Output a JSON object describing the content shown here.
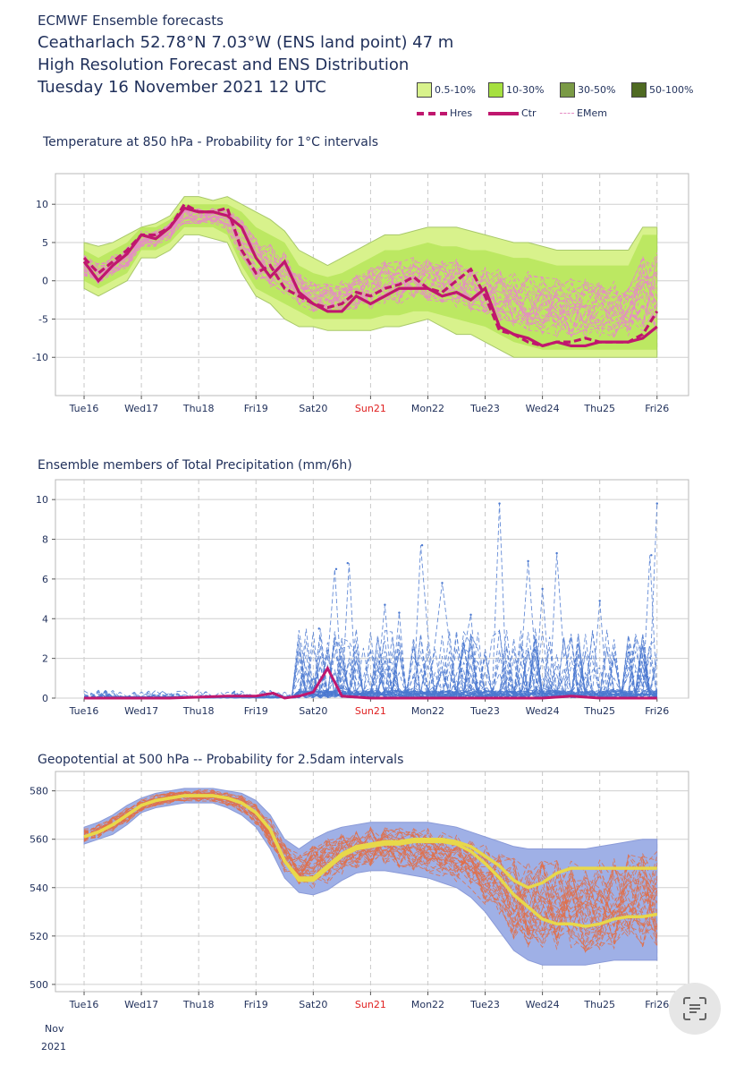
{
  "header": {
    "lines": [
      "ECMWF Ensemble forecasts",
      "Ceatharlach 52.78°N 7.03°W (ENS land point) 47 m",
      "High Resolution Forecast and ENS Distribution",
      "Tuesday 16 November 2021 12 UTC"
    ]
  },
  "legend": {
    "probability_bands": [
      {
        "label": "0.5-10%",
        "color": "#d8f28c"
      },
      {
        "label": "10-30%",
        "color": "#a6e040"
      },
      {
        "label": "30-50%",
        "color": "#7a9a45"
      },
      {
        "label": "50-100%",
        "color": "#4f6a22"
      }
    ],
    "lines": [
      {
        "label": "Hres",
        "color": "#c0176e",
        "style": "dashed-thick"
      },
      {
        "label": "Ctr",
        "color": "#c0176e",
        "style": "solid-thick"
      },
      {
        "label": "EMem",
        "color": "#e58cc4",
        "style": "dashed-thin"
      }
    ]
  },
  "date_axis": {
    "labels": [
      "Tue16",
      "Wed17",
      "Thu18",
      "Fri19",
      "Sat20",
      "Sun21",
      "Mon22",
      "Tue23",
      "Wed24",
      "Thu25",
      "Fri26"
    ],
    "highlight_label": "Sun21",
    "highlight_color": "#e02020",
    "first_label_extra": [
      "Nov",
      "2021"
    ]
  },
  "chart_data": [
    {
      "type": "line",
      "title": "Temperature at 850 hPa - Probability for 1°C intervals",
      "x": [
        0,
        0.5,
        1,
        1.5,
        2,
        2.5,
        3,
        3.5,
        4,
        4.5,
        5,
        5.5,
        6,
        6.5,
        7,
        7.5,
        8,
        8.5,
        9,
        9.5,
        10,
        10.5,
        11,
        11.5,
        12,
        12.5,
        13,
        13.5,
        14,
        14.5,
        15,
        15.5,
        16,
        16.5,
        17,
        17.5,
        18,
        18.5,
        19,
        19.5,
        20
      ],
      "x_unit": "half-day steps from Tue16 12UTC",
      "ylim": [
        -15,
        14
      ],
      "yticks": [
        -10,
        -5,
        0,
        5,
        10
      ],
      "grid": true,
      "series": [
        {
          "name": "Hres",
          "values": [
            3,
            1,
            2.5,
            4,
            6,
            6,
            7,
            10,
            9,
            9,
            9.5,
            4,
            1,
            2,
            -1,
            -2,
            -3,
            -3.5,
            -3,
            -1.5,
            -2,
            -1,
            -0.5,
            0.5,
            -1,
            -1.5,
            0,
            1.5,
            -2,
            -6.5,
            -7,
            -8,
            -8.5,
            -8,
            -8,
            -7.5,
            -8,
            -8,
            -8,
            -7,
            -4
          ]
        },
        {
          "name": "Ctr",
          "values": [
            2.5,
            0,
            2,
            3.5,
            6,
            5.5,
            7,
            9.5,
            9,
            9,
            8.5,
            7,
            3,
            0.5,
            2.5,
            -1.5,
            -3,
            -4,
            -4,
            -2,
            -3,
            -2,
            -1,
            -1,
            -1,
            -2,
            -1.5,
            -2.5,
            -1,
            -6,
            -7,
            -7.5,
            -8.5,
            -8,
            -8.5,
            -8.5,
            -8,
            -8,
            -8,
            -7.5,
            -6
          ]
        }
      ],
      "band_range": {
        "upper": [
          5,
          4.5,
          5,
          6,
          7,
          7.5,
          8.5,
          11,
          11,
          10.5,
          11,
          10,
          9,
          8,
          6.5,
          4,
          3,
          2,
          3,
          4,
          5,
          6,
          6,
          6.5,
          7,
          7,
          7,
          6.5,
          6,
          5.5,
          5,
          5,
          4.5,
          4,
          4,
          4,
          4,
          4,
          4,
          7,
          7
        ],
        "lower": [
          -1,
          -2,
          -1,
          0,
          3,
          3,
          4,
          6,
          6,
          5.5,
          5,
          1,
          -2,
          -3,
          -5,
          -6,
          -6,
          -6.5,
          -6.5,
          -6.5,
          -6.5,
          -6,
          -6,
          -5.5,
          -5,
          -6,
          -7,
          -7,
          -8,
          -9,
          -10,
          -10,
          -10,
          -10,
          -10,
          -10,
          -10,
          -10,
          -10,
          -10,
          -10
        ]
      },
      "member_spread": {
        "upper": [
          4,
          3,
          4,
          5,
          7,
          7,
          8,
          10,
          10,
          10,
          10,
          9,
          7,
          6,
          5,
          2,
          1,
          0.5,
          1,
          2,
          3,
          4,
          4,
          4.5,
          5,
          4.5,
          4.5,
          4,
          4,
          3.5,
          3,
          3,
          2.5,
          2,
          2,
          2,
          2,
          2,
          2,
          6,
          6
        ],
        "lower": [
          0,
          -1,
          0,
          1,
          4,
          4,
          5,
          7,
          7,
          7,
          6,
          2,
          -1,
          -2,
          -3,
          -4,
          -5,
          -5,
          -5,
          -5,
          -5,
          -4.5,
          -4.5,
          -4,
          -4,
          -4.5,
          -5,
          -5.5,
          -6,
          -7,
          -8,
          -8.5,
          -9,
          -9,
          -9,
          -9,
          -9,
          -9,
          -9,
          -9,
          -9
        ]
      }
    },
    {
      "type": "line",
      "title": "Ensemble members of Total Precipitation (mm/6h)",
      "x_unit": "half-day steps from Tue16 12UTC",
      "ylim": [
        0,
        11
      ],
      "yticks": [
        0,
        2,
        4,
        6,
        8,
        10
      ],
      "grid": true,
      "series": [
        {
          "name": "Ctr",
          "x": [
            0,
            1,
            2,
            3,
            4,
            5,
            6,
            6.6,
            7,
            7.5,
            8,
            8.5,
            9,
            10,
            11,
            12,
            13,
            14,
            15,
            16,
            17,
            18,
            19,
            20
          ],
          "values": [
            0,
            0,
            0,
            0,
            0.05,
            0.1,
            0.1,
            0.25,
            0,
            0.1,
            0.3,
            1.5,
            0.1,
            0,
            0,
            0,
            0,
            0,
            0,
            0,
            0.1,
            0,
            0,
            0
          ]
        },
        {
          "name": "peak_members",
          "x": [
            8.2,
            8.8,
            9.2,
            10.5,
            11,
            11.8,
            12.5,
            13.5,
            14.5,
            15.5,
            16,
            16.5,
            18,
            19,
            19.8,
            20
          ],
          "values": [
            3.5,
            6.5,
            6.8,
            4.7,
            4.3,
            7.7,
            5.8,
            4.2,
            9.8,
            6.9,
            5.5,
            7.3,
            4.9,
            2.3,
            7.2,
            9.8
          ]
        }
      ]
    },
    {
      "type": "line",
      "title": "Geopotential at 500 hPa -- Probability for 2.5dam intervals",
      "x_unit": "half-day steps from Tue16 12UTC",
      "ylim": [
        497,
        588
      ],
      "yticks": [
        500,
        520,
        540,
        560,
        580
      ],
      "grid": true,
      "series": [
        {
          "name": "Hres",
          "values": [
            561,
            563,
            566,
            570,
            574,
            576,
            577,
            578,
            578,
            578,
            577,
            575,
            571,
            564,
            551,
            543,
            543,
            548,
            553,
            556,
            557,
            558,
            558,
            559,
            559,
            559,
            558,
            555,
            550,
            544,
            537,
            532,
            527,
            525,
            525,
            524,
            525,
            527,
            528,
            528,
            529
          ]
        },
        {
          "name": "Ctr",
          "values": [
            561,
            563,
            566,
            570,
            574,
            576,
            577,
            578,
            578,
            578,
            577,
            575,
            571,
            564,
            551,
            544,
            544,
            549,
            554,
            557,
            558,
            559,
            559,
            560,
            560,
            560,
            559,
            557,
            553,
            549,
            543,
            540,
            542,
            546,
            548,
            548,
            548,
            548,
            548,
            548,
            548
          ]
        }
      ],
      "band_range": {
        "upper": [
          565,
          567,
          570,
          574,
          577,
          579,
          580,
          581,
          581,
          581,
          580,
          579,
          576,
          570,
          560,
          556,
          560,
          563,
          565,
          566,
          567,
          567,
          567,
          567,
          567,
          566,
          565,
          563,
          561,
          559,
          557,
          556,
          556,
          556,
          556,
          556,
          557,
          558,
          559,
          560,
          560
        ],
        "lower": [
          558,
          560,
          562,
          566,
          571,
          573,
          574,
          575,
          575,
          575,
          573,
          570,
          565,
          556,
          544,
          538,
          537,
          539,
          543,
          546,
          547,
          547,
          546,
          545,
          544,
          542,
          540,
          536,
          530,
          522,
          514,
          510,
          508,
          508,
          508,
          508,
          509,
          510,
          510,
          510,
          510
        ]
      }
    }
  ]
}
